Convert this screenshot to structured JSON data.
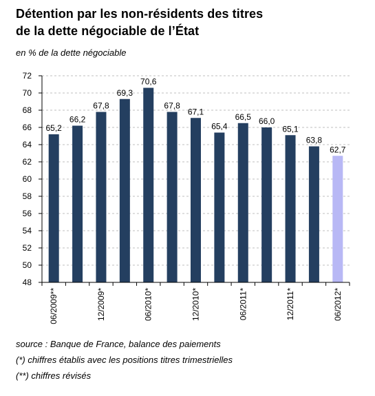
{
  "title_line1": "Détention par les non-résidents des titres",
  "title_line2": "de la dette négociable de l’État",
  "subtitle": "en % de la dette négociable",
  "notes": [
    "source : Banque de France, balance des paiements",
    "(*) chiffres établis avec les positions titres trimestrielles",
    "(**) chiffres révisés"
  ],
  "colors": {
    "bar": "#243F60",
    "bar_highlight": "#B8B8F5",
    "grid": "#BFBFBF",
    "axis": "#000000"
  },
  "chart_data": {
    "type": "bar",
    "title": "Détention par les non-résidents des titres de la dette négociable de l’État",
    "subtitle": "en % de la dette négociable",
    "ylim": [
      48,
      72
    ],
    "yticks": [
      48,
      50,
      52,
      54,
      56,
      58,
      60,
      62,
      64,
      66,
      68,
      70,
      72
    ],
    "grid": true,
    "values": [
      65.2,
      66.2,
      67.8,
      69.3,
      70.6,
      67.8,
      67.1,
      65.4,
      66.5,
      66.0,
      65.1,
      63.8,
      62.7
    ],
    "value_labels": [
      "65,2",
      "66,2",
      "67,8",
      "69,3",
      "70,6",
      "67,8",
      "67,1",
      "65,4",
      "66,5",
      "66,0",
      "65,1",
      "63,8",
      "62,7"
    ],
    "category_labels": [
      "06/2009**",
      "",
      "12/2009*",
      "",
      "06/2010*",
      "",
      "12/2010*",
      "",
      "06/2011*",
      "",
      "12/2011*",
      "",
      "06/2012*"
    ],
    "highlight_index": 12
  }
}
